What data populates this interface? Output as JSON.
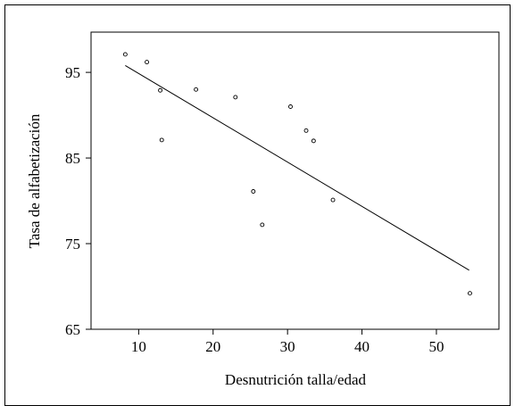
{
  "chart_data": {
    "type": "scatter",
    "xlabel": "Desnutrición talla/edad",
    "ylabel": "Tasa de alfabetización",
    "xlim": [
      3.6,
      58.4
    ],
    "ylim": [
      65,
      99.7
    ],
    "x_ticks": [
      10,
      20,
      30,
      40,
      50
    ],
    "y_ticks": [
      65,
      75,
      85,
      95
    ],
    "x_tick_labels": [
      "10",
      "20",
      "30",
      "40",
      "50"
    ],
    "y_tick_labels": [
      "65",
      "75",
      "85",
      "95"
    ],
    "points": [
      {
        "x": 8.2,
        "y": 97.1
      },
      {
        "x": 11.1,
        "y": 96.2
      },
      {
        "x": 12.9,
        "y": 92.9
      },
      {
        "x": 13.1,
        "y": 87.1
      },
      {
        "x": 17.7,
        "y": 93.0
      },
      {
        "x": 23.0,
        "y": 92.1
      },
      {
        "x": 25.4,
        "y": 81.1
      },
      {
        "x": 26.6,
        "y": 77.2
      },
      {
        "x": 30.4,
        "y": 91.0
      },
      {
        "x": 32.5,
        "y": 88.2
      },
      {
        "x": 33.5,
        "y": 87.0
      },
      {
        "x": 36.1,
        "y": 80.1
      },
      {
        "x": 54.5,
        "y": 69.2
      }
    ],
    "regression_line": [
      {
        "x": 8.2,
        "y": 95.8
      },
      {
        "x": 54.4,
        "y": 71.9
      }
    ],
    "grid": false,
    "legend": "none"
  }
}
